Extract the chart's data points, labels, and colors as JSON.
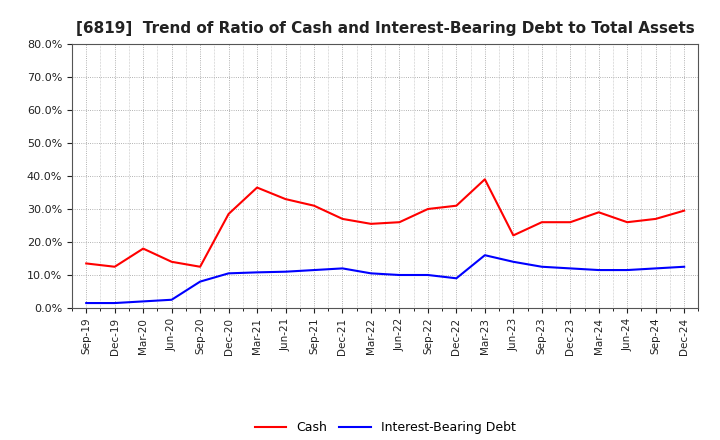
{
  "title": "[6819]  Trend of Ratio of Cash and Interest-Bearing Debt to Total Assets",
  "labels": [
    "Sep-19",
    "Dec-19",
    "Mar-20",
    "Jun-20",
    "Sep-20",
    "Dec-20",
    "Mar-21",
    "Jun-21",
    "Sep-21",
    "Dec-21",
    "Mar-22",
    "Jun-22",
    "Sep-22",
    "Dec-22",
    "Mar-23",
    "Jun-23",
    "Sep-23",
    "Dec-23",
    "Mar-24",
    "Jun-24",
    "Sep-24",
    "Dec-24"
  ],
  "cash": [
    13.5,
    12.5,
    18.0,
    14.0,
    12.5,
    28.5,
    36.5,
    33.0,
    31.0,
    27.0,
    25.5,
    26.0,
    30.0,
    31.0,
    39.0,
    22.0,
    26.0,
    26.0,
    29.0,
    26.0,
    27.0,
    29.5
  ],
  "debt": [
    1.5,
    1.5,
    2.0,
    2.5,
    8.0,
    10.5,
    10.8,
    11.0,
    11.5,
    12.0,
    10.5,
    10.0,
    10.0,
    9.0,
    16.0,
    14.0,
    12.5,
    12.0,
    11.5,
    11.5,
    12.0,
    12.5
  ],
  "cash_color": "#ff0000",
  "debt_color": "#0000ff",
  "grid_color": "#999999",
  "background_color": "#ffffff",
  "plot_bg_color": "#ffffff",
  "ylim": [
    0,
    80
  ],
  "yticks": [
    0,
    10,
    20,
    30,
    40,
    50,
    60,
    70,
    80
  ],
  "title_color": "#222222",
  "legend_labels": [
    "Cash",
    "Interest-Bearing Debt"
  ],
  "tick_label_color": "#222222"
}
